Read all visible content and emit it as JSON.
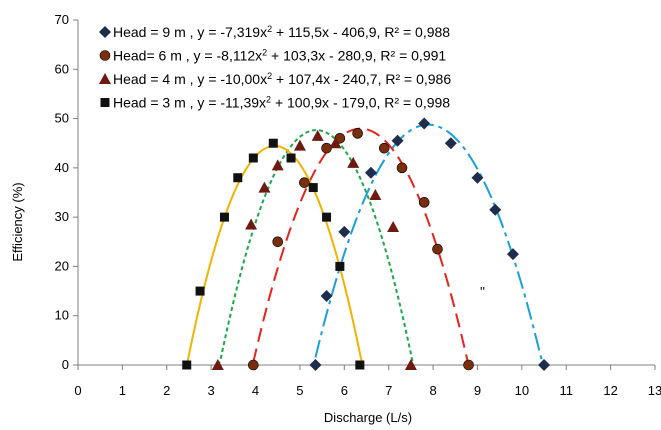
{
  "chart_data": {
    "type": "scatter",
    "xlabel": "Discharge (L/s)",
    "ylabel": "Efficiency (%)",
    "xlim": [
      0,
      13
    ],
    "ylim": [
      0,
      70
    ],
    "xticks": [
      "0",
      "1",
      "2",
      "3",
      "4",
      "5",
      "6",
      "7",
      "8",
      "9",
      "10",
      "11",
      "12",
      "13"
    ],
    "yticks": [
      "0",
      "10",
      "20",
      "30",
      "40",
      "50",
      "60",
      "70"
    ],
    "grid": false,
    "legend_position": "top-left",
    "stray_annotation": "''",
    "series": [
      {
        "name": "Head = 9 m",
        "legend_label": "Head = 9 m , y = -7,319x",
        "legend_rest": " + 115,5x - 406,9, R² = 0,988",
        "marker": "diamond",
        "marker_color": "#1f2d4d",
        "line_color": "#1a9fd8",
        "dash": "18,5,4,5",
        "coef": [
          -7.319,
          115.5,
          -406.9
        ],
        "fit_range": [
          5.35,
          10.55
        ],
        "points": [
          [
            5.35,
            0
          ],
          [
            5.6,
            14
          ],
          [
            6.0,
            27
          ],
          [
            6.6,
            39
          ],
          [
            7.2,
            45.5
          ],
          [
            7.8,
            49
          ],
          [
            8.4,
            45
          ],
          [
            9.0,
            38
          ],
          [
            9.4,
            31.5
          ],
          [
            9.8,
            22.5
          ],
          [
            10.5,
            0
          ]
        ]
      },
      {
        "name": "Head= 6 m",
        "legend_label": "Head= 6 m , y = -8,112x",
        "legend_rest": " + 103,3x - 280,9, R² = 0,991",
        "marker": "circle",
        "marker_color": "#7a2e0e",
        "line_color": "#e8221c",
        "dash": "14,7",
        "coef": [
          -8.112,
          103.3,
          -280.9
        ],
        "fit_range": [
          3.95,
          8.85
        ],
        "points": [
          [
            3.95,
            0
          ],
          [
            4.5,
            25
          ],
          [
            5.1,
            37
          ],
          [
            5.6,
            44
          ],
          [
            5.9,
            46
          ],
          [
            6.3,
            47
          ],
          [
            6.9,
            44
          ],
          [
            7.3,
            40
          ],
          [
            7.8,
            33
          ],
          [
            8.1,
            23.5
          ],
          [
            8.8,
            0
          ]
        ]
      },
      {
        "name": "Head = 4 m",
        "legend_label": "Head = 4 m , y = -10,00x",
        "legend_rest": " + 107,4x - 240,7, R² = 0,986",
        "marker": "triangle",
        "marker_color": "#6e1a10",
        "line_color": "#1ca84a",
        "dash": "4,3",
        "coef": [
          -10.0,
          107.4,
          -240.7
        ],
        "fit_range": [
          3.15,
          7.55
        ],
        "points": [
          [
            3.15,
            0
          ],
          [
            3.9,
            28.5
          ],
          [
            4.2,
            36
          ],
          [
            4.5,
            40.5
          ],
          [
            5.0,
            44.5
          ],
          [
            5.4,
            46.5
          ],
          [
            5.8,
            45
          ],
          [
            6.2,
            41
          ],
          [
            6.7,
            34.5
          ],
          [
            7.1,
            28
          ],
          [
            7.5,
            0
          ]
        ]
      },
      {
        "name": "Head = 3 m",
        "legend_label": "Head = 3 m , y = -11,39x",
        "legend_rest": " + 100,9x - 179,0, R² = 0,998",
        "marker": "square",
        "marker_color": "#111111",
        "line_color": "#f2b400",
        "dash": "",
        "coef": [
          -11.39,
          100.9,
          -179.0
        ],
        "fit_range": [
          2.45,
          6.42
        ],
        "points": [
          [
            2.45,
            0
          ],
          [
            2.75,
            15
          ],
          [
            3.3,
            30
          ],
          [
            3.6,
            38
          ],
          [
            3.95,
            42
          ],
          [
            4.4,
            45
          ],
          [
            4.8,
            42
          ],
          [
            5.3,
            36
          ],
          [
            5.6,
            30
          ],
          [
            5.9,
            20
          ],
          [
            6.35,
            0
          ]
        ]
      }
    ]
  }
}
